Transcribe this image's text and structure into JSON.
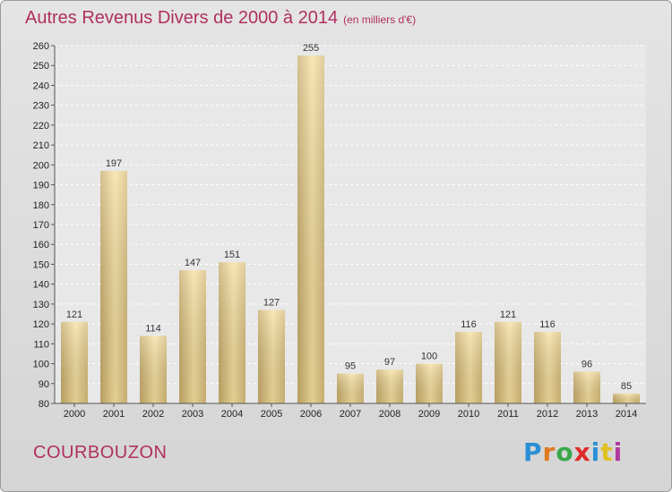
{
  "header": {
    "title": "Autres Revenus Divers de 2000 à 2014",
    "unit": "(en milliers d'€)"
  },
  "footer": {
    "place": "COURBOUZON",
    "logo_text": "Proxiti",
    "logo_colors": [
      "#2a8fd6",
      "#e07a1f",
      "#3aa84a",
      "#e02a2a",
      "#2a8fd6",
      "#e0c01f",
      "#b03aa0"
    ]
  },
  "chart_data": {
    "type": "bar",
    "title": "Autres Revenus Divers de 2000 à 2014",
    "categories": [
      "2000",
      "2001",
      "2002",
      "2003",
      "2004",
      "2005",
      "2006",
      "2007",
      "2008",
      "2009",
      "2010",
      "2011",
      "2012",
      "2013",
      "2014"
    ],
    "values": [
      121,
      197,
      114,
      147,
      151,
      127,
      255,
      95,
      97,
      100,
      116,
      121,
      116,
      96,
      85
    ],
    "ylim": [
      80,
      260
    ],
    "yticks": [
      80,
      90,
      100,
      110,
      120,
      130,
      140,
      150,
      160,
      170,
      180,
      190,
      200,
      210,
      220,
      230,
      240,
      250,
      260
    ],
    "grid": true,
    "bar_colors": {
      "light": "#f6e0a0",
      "dark": "#c8ac6a"
    }
  }
}
